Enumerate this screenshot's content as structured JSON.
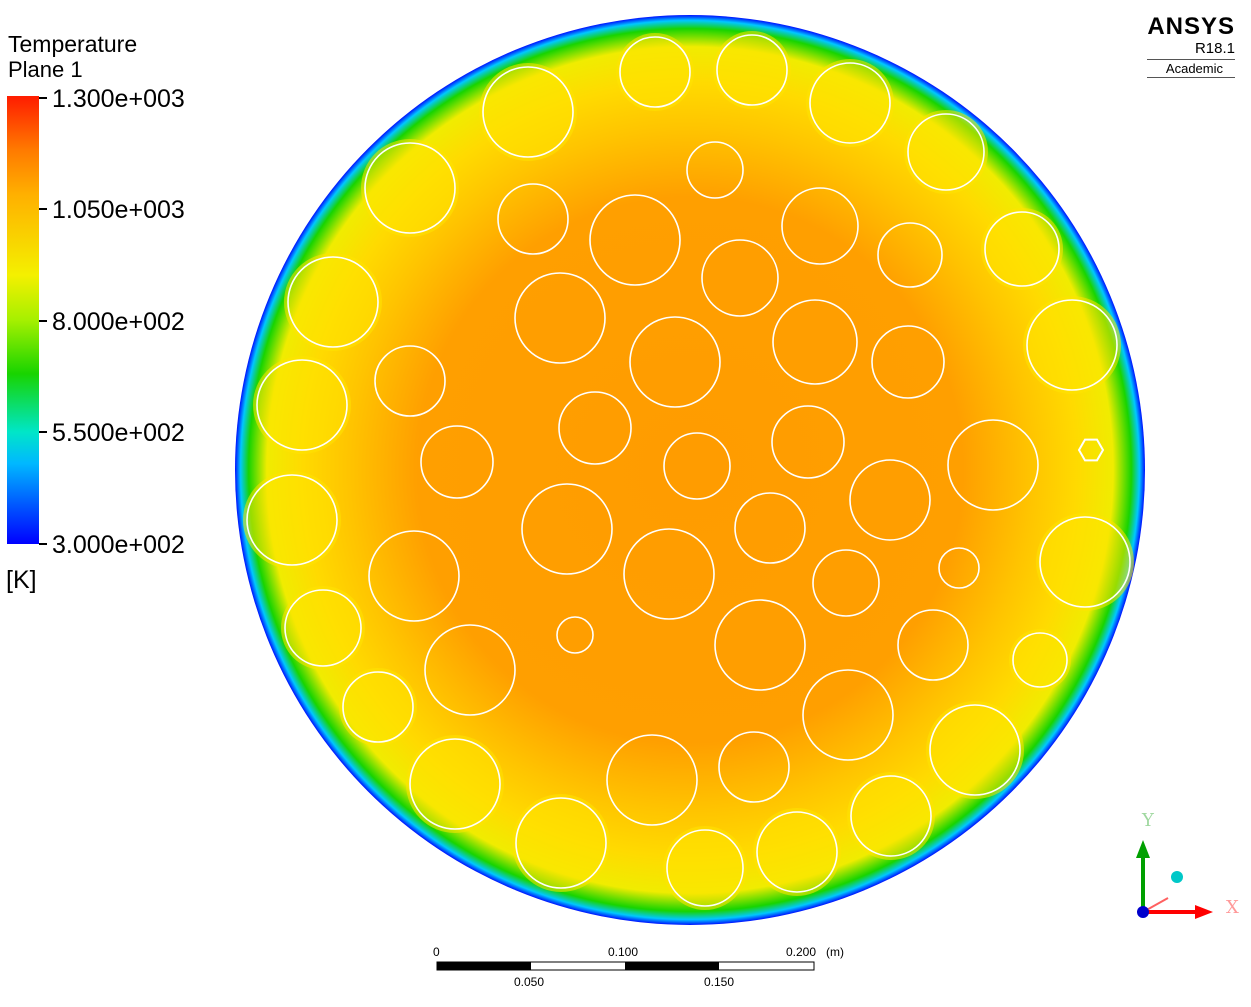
{
  "legend": {
    "title": "Temperature",
    "subtitle": "Plane 1",
    "ticks": [
      "1.300e+003",
      "1.050e+003",
      "8.000e+002",
      "5.500e+002",
      "3.000e+002"
    ],
    "unit": "[K]",
    "colors": {
      "max": "#ff1c00",
      "high": "#ffb000",
      "mid": "#f4f000",
      "midlow": "#18d400",
      "low": "#00e6c8",
      "min": "#0000ff"
    }
  },
  "logo": {
    "brand": "ANSYS",
    "version": "R18.1",
    "edition": "Academic"
  },
  "scale_bar": {
    "top_labels": [
      "0",
      "0.100",
      "0.200"
    ],
    "bottom_labels": [
      "0.050",
      "0.150"
    ],
    "unit": "(m)"
  },
  "axes": {
    "y_label": "Y",
    "x_label": "X",
    "colors": {
      "y": "#00a000",
      "x": "#ff0000",
      "z": "#0000cc",
      "sphere": "#00c8c8"
    }
  },
  "contour": {
    "colors": {
      "core": "#ff9f00",
      "ring": "#ffd000",
      "rim": "#0010ff",
      "edge_green": "#18d400"
    }
  }
}
